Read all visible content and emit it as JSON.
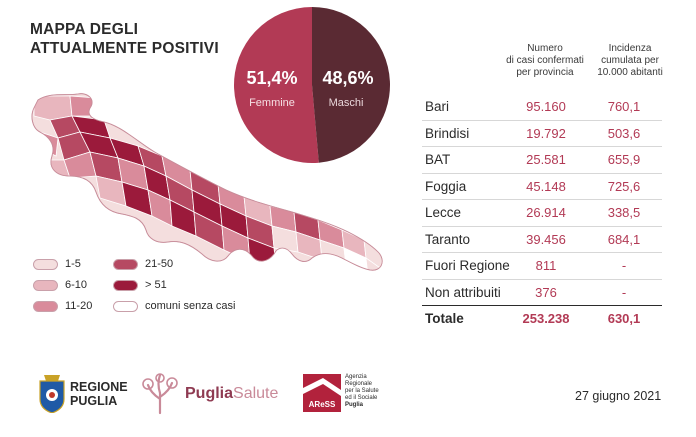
{
  "header": {
    "title_line1": "MAPPA DEGLI",
    "title_line2": "ATTUALMENTE POSITIVI"
  },
  "gender": {
    "female_pct": "51,4%",
    "female_label": "Femmine",
    "male_pct": "48,6%",
    "male_label": "Maschi"
  },
  "table": {
    "col1_header": [
      "Numero",
      "di casi confermati",
      "per provincia"
    ],
    "col2_header": [
      "Incidenza",
      "cumulata per",
      "10.000 abitanti"
    ],
    "rows": [
      {
        "name": "Bari",
        "cases": "95.160",
        "incidence": "760,1"
      },
      {
        "name": "Brindisi",
        "cases": "19.792",
        "incidence": "503,6"
      },
      {
        "name": "BAT",
        "cases": "25.581",
        "incidence": "655,9"
      },
      {
        "name": "Foggia",
        "cases": "45.148",
        "incidence": "725,6"
      },
      {
        "name": "Lecce",
        "cases": "26.914",
        "incidence": "338,5"
      },
      {
        "name": "Taranto",
        "cases": "39.456",
        "incidence": "684,1"
      },
      {
        "name": "Fuori Regione",
        "cases": "811",
        "incidence": "-"
      },
      {
        "name": "Non attribuiti",
        "cases": "376",
        "incidence": "-"
      }
    ],
    "total": {
      "name": "Totale",
      "cases": "253.238",
      "incidence": "630,1"
    }
  },
  "legend": {
    "items": [
      {
        "label": "1-5",
        "color": "#f4dede"
      },
      {
        "label": "6-10",
        "color": "#e8b6be"
      },
      {
        "label": "11-20",
        "color": "#d98b9b"
      },
      {
        "label": "21-50",
        "color": "#b64962"
      },
      {
        "label": "> 51",
        "color": "#9b1a3b"
      },
      {
        "label": "comuni senza casi",
        "color": "#ffffff"
      }
    ]
  },
  "footer": {
    "regione_line1": "REGIONE",
    "regione_line2": "PUGLIA",
    "puglia_bold": "Puglia",
    "puglia_light": "Salute",
    "ares_abbr": "AReSS",
    "ares_line1": "Agenzia",
    "ares_line2": "Regionale",
    "ares_line3": "per la Salute",
    "ares_line4": "ed il Sociale",
    "ares_line5": "Puglia",
    "date": "27 giugno 2021"
  },
  "chart_data": {
    "type": "pie",
    "labels": [
      "Femmine",
      "Maschi"
    ],
    "values": [
      51.4,
      48.6
    ],
    "colors": [
      "#b23a55",
      "#5a2a33"
    ]
  }
}
